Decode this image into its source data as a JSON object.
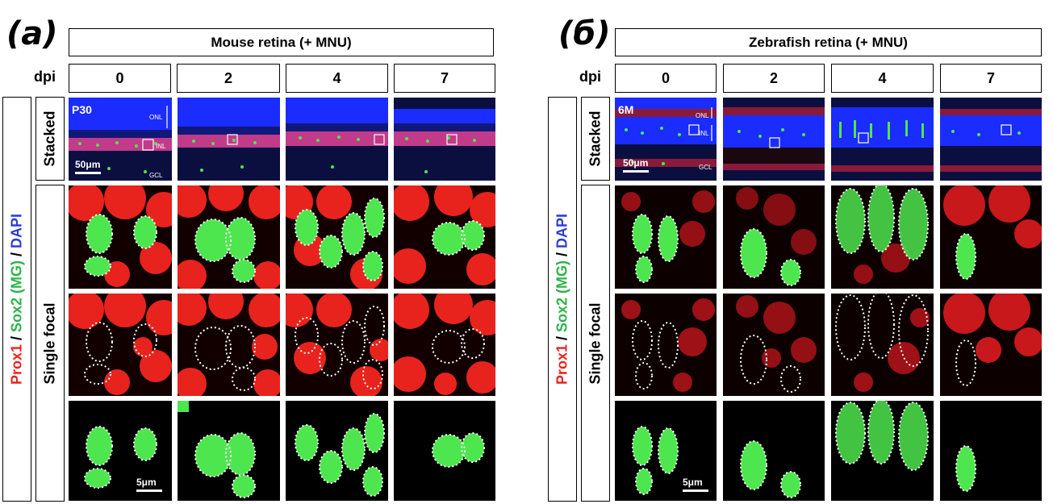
{
  "panels": [
    {
      "letter": "(a)",
      "title": "Mouse retina (+ MNU)",
      "dpi_label": "dpi",
      "dpi": [
        "0",
        "2",
        "4",
        "7"
      ],
      "row_labels": {
        "stacked": "Stacked",
        "single": "Single focal"
      },
      "image_tags": {
        "age": "P30",
        "onl": "ONL",
        "inl": "INL",
        "gcl": "GCL"
      },
      "scale_bars": {
        "stacked": "50μm",
        "single": "5μm"
      },
      "colors": {
        "nucleus": "#1a2cff",
        "marker_red": "#e8231d",
        "marker_green": "#4ee64e"
      }
    },
    {
      "letter": "(б)",
      "title": "Zebrafish retina (+ MNU)",
      "dpi_label": "dpi",
      "dpi": [
        "0",
        "2",
        "4",
        "7"
      ],
      "row_labels": {
        "stacked": "Stacked",
        "single": "Single focal"
      },
      "image_tags": {
        "age": "6M",
        "onl": "ONL",
        "inl": "INL",
        "gcl": "GCL"
      },
      "scale_bars": {
        "stacked": "50μm",
        "single": "5μm"
      },
      "colors": {
        "nucleus": "#1a2cff",
        "marker_red": "#e8231d",
        "marker_green": "#4ee64e"
      }
    }
  ],
  "stain_legend": [
    {
      "text": "Prox1",
      "color": "#e8231d"
    },
    {
      "text": " / ",
      "color": "#000000"
    },
    {
      "text": "Sox2 (MG)",
      "color": "#2db34a"
    },
    {
      "text": " / ",
      "color": "#000000"
    },
    {
      "text": "DAPI",
      "color": "#2b3dd6"
    }
  ]
}
